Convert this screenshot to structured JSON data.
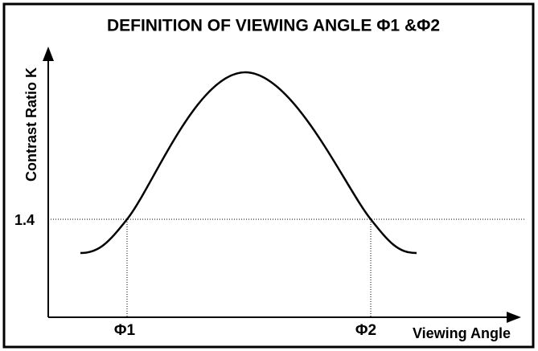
{
  "title": "DEFINITION OF VIEWING ANGLE Φ1 &Φ2",
  "y_axis_label": "Contrast Ratio K",
  "x_axis_label": "Viewing Angle",
  "reference_label": "1.4",
  "angle_labels": [
    "Φ1",
    "Φ2"
  ]
}
